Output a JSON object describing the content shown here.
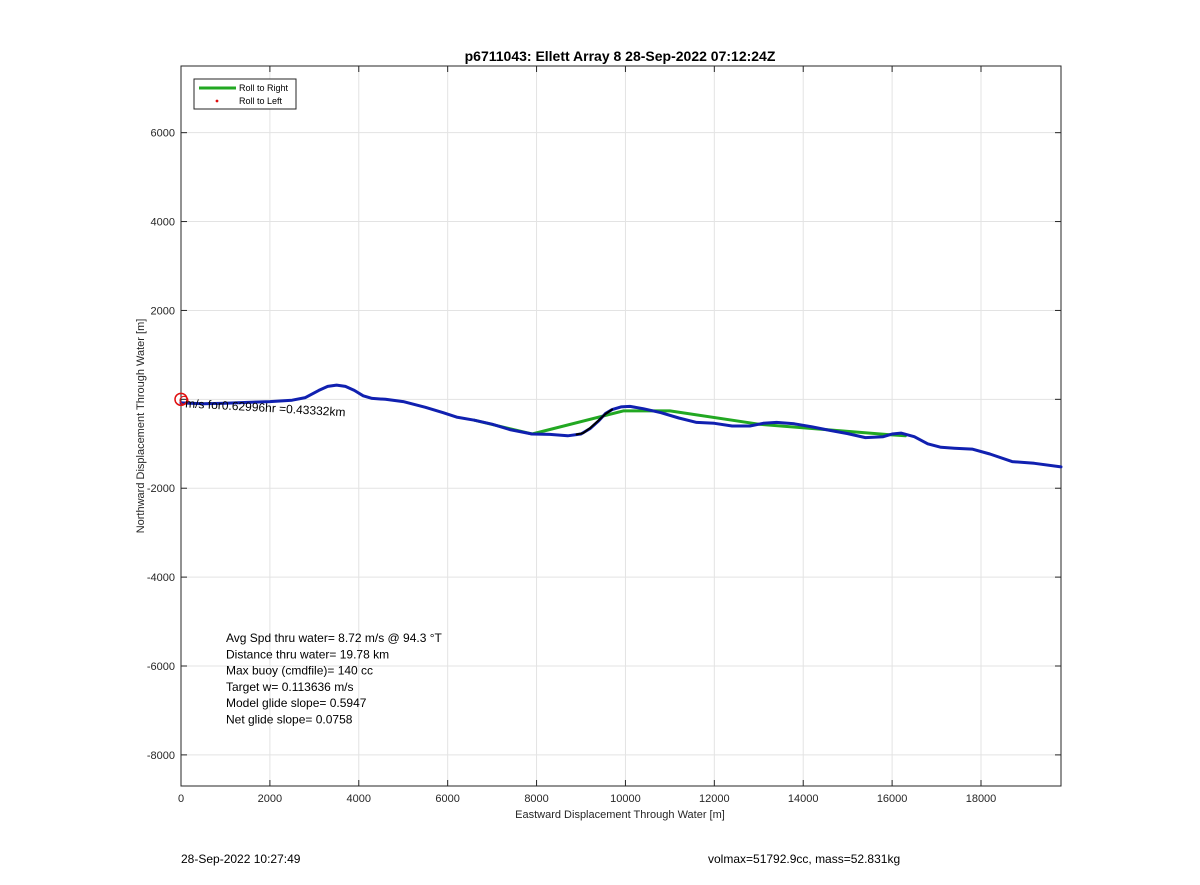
{
  "chart_data": {
    "type": "line",
    "title": "p6711043: Ellett Array 8 28-Sep-2022 07:12:24Z",
    "xlabel": "Eastward Displacement Through Water [m]",
    "ylabel": "Northward Displacement Through Water [m]",
    "xlim": [
      0,
      19800
    ],
    "ylim": [
      -8700,
      7500
    ],
    "xticks": [
      0,
      2000,
      4000,
      6000,
      8000,
      10000,
      12000,
      14000,
      16000,
      18000
    ],
    "yticks": [
      -8000,
      -6000,
      -4000,
      -2000,
      2000,
      4000,
      6000
    ],
    "grid": true,
    "legend_position": "top-left",
    "legend": [
      {
        "label": "Roll to Right",
        "color": "#22a822",
        "style": "line"
      },
      {
        "label": "Roll to Left",
        "color": "#e01010",
        "style": "dot"
      }
    ],
    "series": [
      {
        "name": "Roll to Right",
        "color": "#22a822",
        "x": [
          6600,
          7900,
          9950,
          11000,
          13000,
          16000,
          16300
        ],
        "y": [
          -470,
          -780,
          -260,
          -260,
          -560,
          -800,
          -820
        ]
      },
      {
        "color": "#1020b0",
        "x": [
          0,
          500,
          1000,
          1500,
          2000,
          2500,
          2800,
          3100,
          3300,
          3500,
          3700,
          3900,
          4100,
          4300,
          4600,
          5000,
          5500,
          5900,
          6200,
          6600,
          7000,
          7400,
          7900,
          8300,
          8700,
          9000,
          9200,
          9400,
          9550,
          9700,
          9900,
          10100,
          10400,
          10800,
          11200,
          11600,
          12000,
          12400,
          12800,
          13100,
          13400,
          13800,
          14200,
          14600,
          15000,
          15400,
          15800,
          16000,
          16200,
          16500,
          16800,
          17100,
          17400,
          17800,
          18200,
          18700,
          19200,
          19800
        ],
        "y": [
          -80,
          -100,
          -90,
          -70,
          -50,
          -20,
          40,
          200,
          290,
          320,
          290,
          200,
          80,
          20,
          0,
          -50,
          -180,
          -300,
          -400,
          -470,
          -560,
          -680,
          -780,
          -790,
          -820,
          -780,
          -660,
          -480,
          -320,
          -230,
          -170,
          -160,
          -210,
          -300,
          -420,
          -520,
          -540,
          -600,
          -600,
          -540,
          -520,
          -550,
          -620,
          -700,
          -770,
          -860,
          -840,
          -780,
          -760,
          -840,
          -1000,
          -1080,
          -1100,
          -1120,
          -1230,
          -1400,
          -1440,
          -1520
        ]
      },
      {
        "color": "#000000",
        "x": [
          8900,
          9050,
          9200,
          9400,
          9550,
          9700
        ],
        "y": [
          -790,
          -760,
          -650,
          -470,
          -330,
          -230
        ]
      }
    ],
    "start_marker": {
      "x": 0,
      "y": 0,
      "color": "#e01010"
    },
    "segment_label": "m/s for0.62996hr =0.43332km",
    "annotations": [
      "Avg Spd thru water=  8.72 m/s @  94.3 °T",
      "Distance thru water= 19.78 km",
      "Max buoy (cmdfile)= 140 cc",
      "Target w= 0.113636 m/s",
      "Model glide slope= 0.5947",
      "Net glide slope= 0.0758"
    ]
  },
  "footer": {
    "timestamp": "28-Sep-2022 10:27:49",
    "stats": "volmax=51792.9cc, mass=52.831kg"
  }
}
